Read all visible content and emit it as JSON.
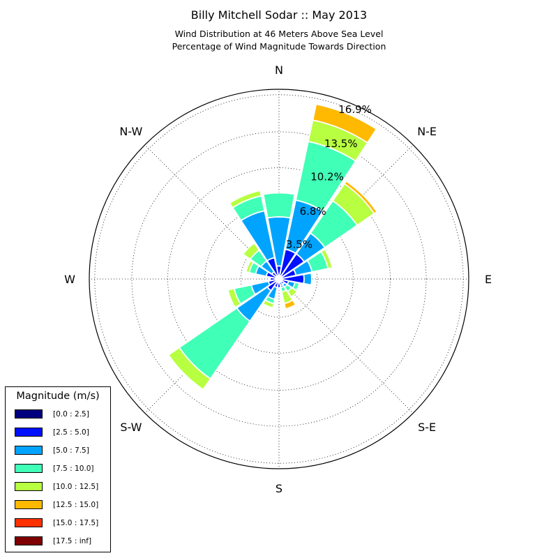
{
  "chart_data": {
    "type": "windrose",
    "title": "Billy Mitchell Sodar :: May 2013",
    "subtitle_lines": [
      "Wind Distribution at 46 Meters Above Sea Level",
      "Percentage of Wind Magnitude Towards Direction"
    ],
    "directions": [
      "N",
      "NNE",
      "NE",
      "ENE",
      "E",
      "ESE",
      "SE",
      "SSE",
      "S",
      "SSW",
      "SW",
      "WSW",
      "W",
      "WNW",
      "NW",
      "NNW"
    ],
    "compass_labels": [
      {
        "label": "N",
        "angle": 0
      },
      {
        "label": "N-E",
        "angle": 45
      },
      {
        "label": "E",
        "angle": 90
      },
      {
        "label": "S-E",
        "angle": 135
      },
      {
        "label": "S",
        "angle": 180
      },
      {
        "label": "S-W",
        "angle": 225
      },
      {
        "label": "W",
        "angle": 270
      },
      {
        "label": "N-W",
        "angle": 315
      }
    ],
    "radial_ticks": [
      3.5,
      6.8,
      10.2,
      13.5,
      16.9
    ],
    "radial_tick_labels": [
      "3.5%",
      "6.8%",
      "10.2%",
      "13.5%",
      "16.9%"
    ],
    "rmax": 17.4,
    "legend_title": "Magnitude (m/s)",
    "bins": [
      {
        "label": "[0.0 : 2.5]",
        "color": "#00007f"
      },
      {
        "label": "[2.5 : 5.0]",
        "color": "#0010ff"
      },
      {
        "label": "[5.0 : 7.5]",
        "color": "#00a4ff"
      },
      {
        "label": "[7.5 : 10.0]",
        "color": "#40ffb7"
      },
      {
        "label": "[10.0 : 12.5]",
        "color": "#b7ff40"
      },
      {
        "label": "[12.5 : 15.0]",
        "color": "#ffb900"
      },
      {
        "label": "[15.0 : 17.5]",
        "color": "#ff3000"
      },
      {
        "label": "[17.5 : inf]",
        "color": "#7f0000"
      }
    ],
    "cumulative_percent": [
      [
        0.3,
        1.2,
        5.7,
        7.9,
        7.9,
        7.9,
        7.9,
        7.9
      ],
      [
        0.3,
        2.8,
        7.4,
        12.9,
        14.9,
        16.4,
        16.4,
        16.4
      ],
      [
        0.3,
        2.8,
        5.1,
        8.7,
        10.6,
        10.9,
        10.9,
        10.9
      ],
      [
        0.3,
        1.6,
        3.1,
        4.6,
        5.0,
        5.0,
        5.0,
        5.0
      ],
      [
        0.3,
        2.3,
        3.0,
        3.0,
        3.0,
        3.0,
        3.0,
        3.0
      ],
      [
        0.3,
        0.9,
        1.5,
        1.9,
        1.9,
        1.9,
        1.9,
        1.9
      ],
      [
        0.3,
        0.6,
        0.9,
        1.4,
        2.0,
        2.0,
        2.0,
        2.0
      ],
      [
        0.3,
        0.6,
        0.8,
        1.2,
        2.3,
        2.8,
        2.8,
        2.8
      ],
      [
        0.3,
        0.8,
        0.9,
        1.0,
        1.0,
        1.0,
        1.0,
        1.0
      ],
      [
        0.3,
        0.8,
        1.9,
        2.3,
        2.7,
        2.7,
        2.7,
        2.7
      ],
      [
        0.3,
        1.3,
        4.7,
        11.1,
        12.3,
        12.3,
        12.3,
        12.3
      ],
      [
        0.3,
        1.0,
        2.6,
        4.2,
        4.8,
        4.9,
        4.9,
        4.9
      ],
      [
        0.3,
        0.8,
        0.8,
        0.8,
        0.8,
        0.8,
        0.8,
        0.8
      ],
      [
        0.3,
        1.2,
        2.2,
        2.8,
        3.1,
        3.1,
        3.1,
        3.1
      ],
      [
        0.3,
        0.8,
        2.0,
        3.2,
        4.0,
        4.0,
        4.0,
        4.0
      ],
      [
        0.3,
        2.0,
        6.4,
        7.8,
        8.3,
        8.3,
        8.3,
        8.3
      ]
    ]
  }
}
